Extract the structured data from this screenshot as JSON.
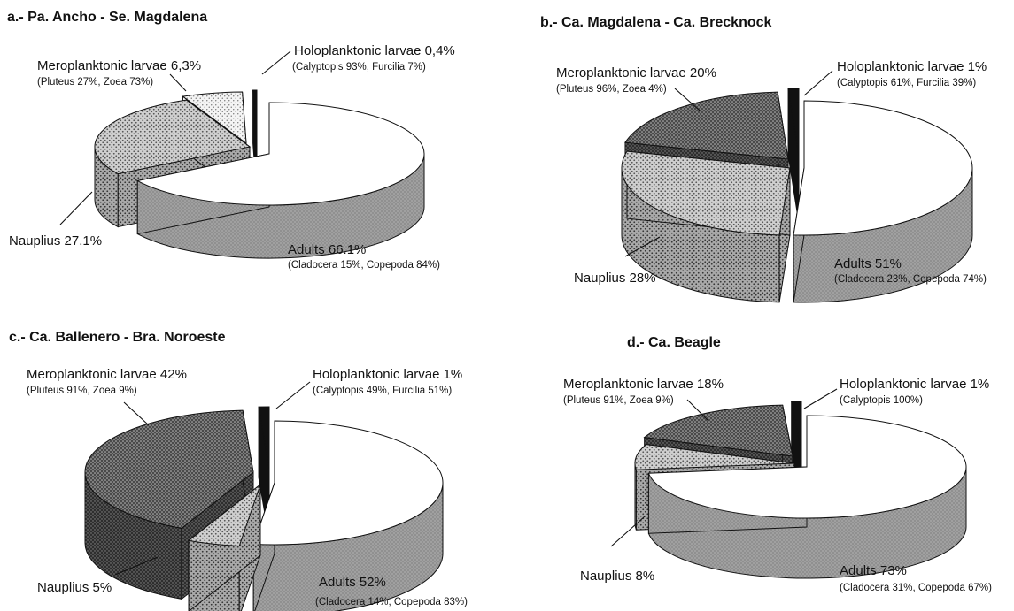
{
  "colors": {
    "adults": "#ffffff",
    "nauplius": "#c9c9c9",
    "holo": "#111111",
    "meroA": "#f0f0f0",
    "meroDark": "#5c5c5c"
  },
  "chart_data": [
    {
      "type": "pie",
      "title": "a.- Pa. Ancho - Se. Magdalena",
      "slices": [
        {
          "name": "Adults",
          "label": "Adults 66.1%",
          "value": 66.1,
          "detail": "(Cladocera 15%, Copepoda 84%)"
        },
        {
          "name": "Nauplius",
          "label": "Nauplius 27.1%",
          "value": 27.1,
          "detail": ""
        },
        {
          "name": "Meroplanktonic larvae",
          "label": "Meroplanktonic larvae 6,3%",
          "value": 6.3,
          "detail": "(Pluteus 27%, Zoea 73%)"
        },
        {
          "name": "Holoplanktonic larvae",
          "label": "Holoplanktonic larvae 0,4%",
          "value": 0.4,
          "detail": "(Calyptopis 93%,  Furcilia 7%)"
        }
      ]
    },
    {
      "type": "pie",
      "title": "b.- Ca. Magdalena - Ca. Brecknock",
      "slices": [
        {
          "name": "Adults",
          "label": "Adults 51%",
          "value": 51,
          "detail": "(Cladocera 23%, Copepoda 74%)"
        },
        {
          "name": "Nauplius",
          "label": "Nauplius 28%",
          "value": 28,
          "detail": ""
        },
        {
          "name": "Meroplanktonic larvae",
          "label": "Meroplanktonic larvae 20%",
          "value": 20,
          "detail": "(Pluteus 96%, Zoea 4%)"
        },
        {
          "name": "Holoplanktonic larvae",
          "label": "Holoplanktonic larvae 1%",
          "value": 1,
          "detail": "(Calyptopis 61%, Furcilia 39%)"
        }
      ]
    },
    {
      "type": "pie",
      "title": "c.- Ca. Ballenero - Bra. Noroeste",
      "slices": [
        {
          "name": "Adults",
          "label": "Adults 52%",
          "value": 52,
          "detail": "(Cladocera 14%, Copepoda 83%)"
        },
        {
          "name": "Nauplius",
          "label": "Nauplius 5%",
          "value": 5,
          "detail": ""
        },
        {
          "name": "Meroplanktonic larvae",
          "label": "Meroplanktonic larvae 42%",
          "value": 42,
          "detail": "(Pluteus 91%, Zoea 9%)"
        },
        {
          "name": "Holoplanktonic larvae",
          "label": "Holoplanktonic larvae 1%",
          "value": 1,
          "detail": "(Calyptopis 49%, Furcilia 51%)"
        }
      ]
    },
    {
      "type": "pie",
      "title": "d.- Ca. Beagle",
      "slices": [
        {
          "name": "Adults",
          "label": "Adults 73%",
          "value": 73,
          "detail": "(Cladocera 31%, Copepoda 67%)"
        },
        {
          "name": "Nauplius",
          "label": "Nauplius 8%",
          "value": 8,
          "detail": ""
        },
        {
          "name": "Meroplanktonic larvae",
          "label": "Meroplanktonic larvae 18%",
          "value": 18,
          "detail": "(Pluteus 91%, Zoea 9%)"
        },
        {
          "name": "Holoplanktonic larvae",
          "label": "Holoplanktonic larvae 1%",
          "value": 1,
          "detail": "(Calyptopis 100%)"
        }
      ]
    }
  ]
}
